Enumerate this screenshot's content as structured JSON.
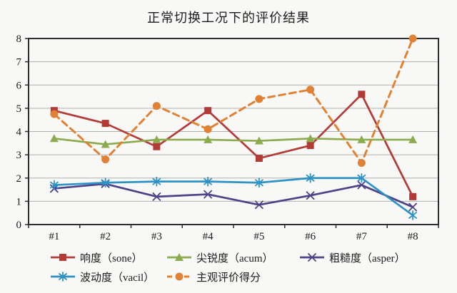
{
  "chart_data": {
    "type": "line",
    "title": "正常切换工况下的评价结果",
    "categories": [
      "#1",
      "#2",
      "#3",
      "#4",
      "#5",
      "#6",
      "#7",
      "#8"
    ],
    "xlabel": "",
    "ylabel": "",
    "ylim": [
      0,
      8
    ],
    "ytick_step": 1,
    "grid": "horizontal-only",
    "legend_position": "bottom",
    "axis_color": "#2d2d2d",
    "grid_color": "#b0b0b0",
    "series": [
      {
        "name": "响度（sone）",
        "marker": "square",
        "dash": "solid",
        "color": "#b23b38",
        "values": [
          4.9,
          4.35,
          3.35,
          4.9,
          2.85,
          3.4,
          5.6,
          1.2
        ]
      },
      {
        "name": "尖锐度（acum）",
        "marker": "triangle",
        "dash": "solid",
        "color": "#8cab4f",
        "values": [
          3.7,
          3.45,
          3.65,
          3.65,
          3.6,
          3.7,
          3.65,
          3.65
        ]
      },
      {
        "name": "粗糙度（asper）",
        "marker": "x",
        "dash": "solid",
        "color": "#4e4386",
        "values": [
          1.55,
          1.75,
          1.2,
          1.3,
          0.85,
          1.25,
          1.7,
          0.75
        ]
      },
      {
        "name": "波动度（vacil）",
        "marker": "asterisk",
        "dash": "solid",
        "color": "#2e93c4",
        "values": [
          1.7,
          1.8,
          1.85,
          1.85,
          1.8,
          2.0,
          2.0,
          0.4
        ]
      },
      {
        "name": "主观评价得分",
        "marker": "circle",
        "dash": "dashed",
        "color": "#e08134",
        "values": [
          4.75,
          2.8,
          5.1,
          4.1,
          5.4,
          5.8,
          2.65,
          8.0
        ]
      }
    ],
    "legend_rows": [
      [
        0,
        1,
        2
      ],
      [
        3,
        4
      ]
    ]
  }
}
